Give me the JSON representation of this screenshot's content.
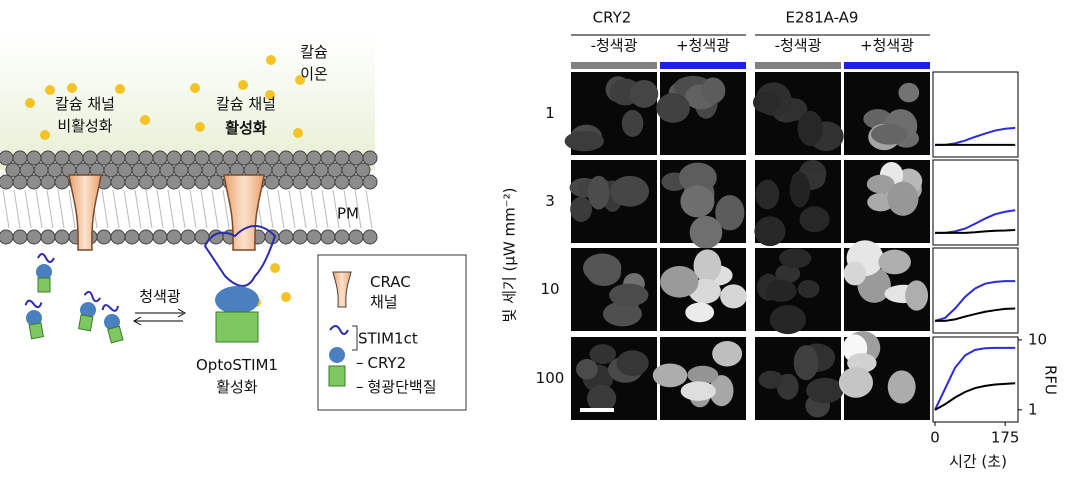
{
  "schematic": {
    "ion_label": [
      "칼슘",
      "이온"
    ],
    "inactive_label": [
      "칼슘 채널",
      "비활성화"
    ],
    "active_label": [
      "칼슘 채널",
      "활성화"
    ],
    "membrane": "PM",
    "light": "청색광",
    "opto": [
      "OptoSTIM1",
      "활성화"
    ],
    "legend": {
      "crac": [
        "CRAC",
        "채널"
      ],
      "stim": "STIM1ct",
      "cry": "CRY2",
      "fp": "형광단백질"
    }
  },
  "imaging": {
    "groups": [
      "CRY2",
      "E281A-A9"
    ],
    "conditions": [
      "-청색광",
      "+청색광",
      "-청색광",
      "+청색광"
    ],
    "condition_colors": [
      "#808080",
      "#2020e0",
      "#808080",
      "#2020e0"
    ],
    "y_axis_label": "빛 세기 (μW mm⁻²)",
    "rows": [
      "1",
      "3",
      "10",
      "100"
    ]
  },
  "plots": {
    "type": "line",
    "x_label": "시간 (초)",
    "y_label": "RFU",
    "log_y": true,
    "x": [
      0,
      25,
      50,
      75,
      100,
      125,
      150,
      175,
      200
    ],
    "xlim": [
      -5,
      207
    ],
    "xticks": [
      0,
      175
    ],
    "ylim": [
      0.67,
      11
    ],
    "yticks": [
      1,
      10
    ],
    "panels": [
      {
        "series": [
          {
            "color": "#2a2ae0",
            "values": [
              1,
              1,
              1.05,
              1.15,
              1.3,
              1.45,
              1.6,
              1.7,
              1.75
            ]
          },
          {
            "color": "#000000",
            "values": [
              1,
              1,
              1,
              1,
              1,
              1,
              1,
              1,
              1
            ]
          }
        ]
      },
      {
        "series": [
          {
            "color": "#2a2ae0",
            "values": [
              1,
              1,
              1.05,
              1.15,
              1.35,
              1.6,
              1.85,
              2.0,
              2.1
            ]
          },
          {
            "color": "#000000",
            "values": [
              1,
              1,
              1,
              1,
              1.02,
              1.05,
              1.07,
              1.08,
              1.1
            ]
          }
        ]
      },
      {
        "series": [
          {
            "color": "#2a2ae0",
            "values": [
              1,
              1.1,
              1.5,
              2.2,
              2.9,
              3.4,
              3.6,
              3.7,
              3.7
            ]
          },
          {
            "color": "#000000",
            "values": [
              1,
              1,
              1.05,
              1.15,
              1.25,
              1.35,
              1.42,
              1.48,
              1.5
            ]
          }
        ]
      },
      {
        "series": [
          {
            "color": "#2a2ae0",
            "values": [
              1,
              2,
              4,
              6,
              7.2,
              7.6,
              7.7,
              7.7,
              7.7
            ]
          },
          {
            "color": "#000000",
            "values": [
              1,
              1.2,
              1.5,
              1.8,
              2.05,
              2.2,
              2.3,
              2.35,
              2.4
            ]
          }
        ]
      }
    ]
  }
}
